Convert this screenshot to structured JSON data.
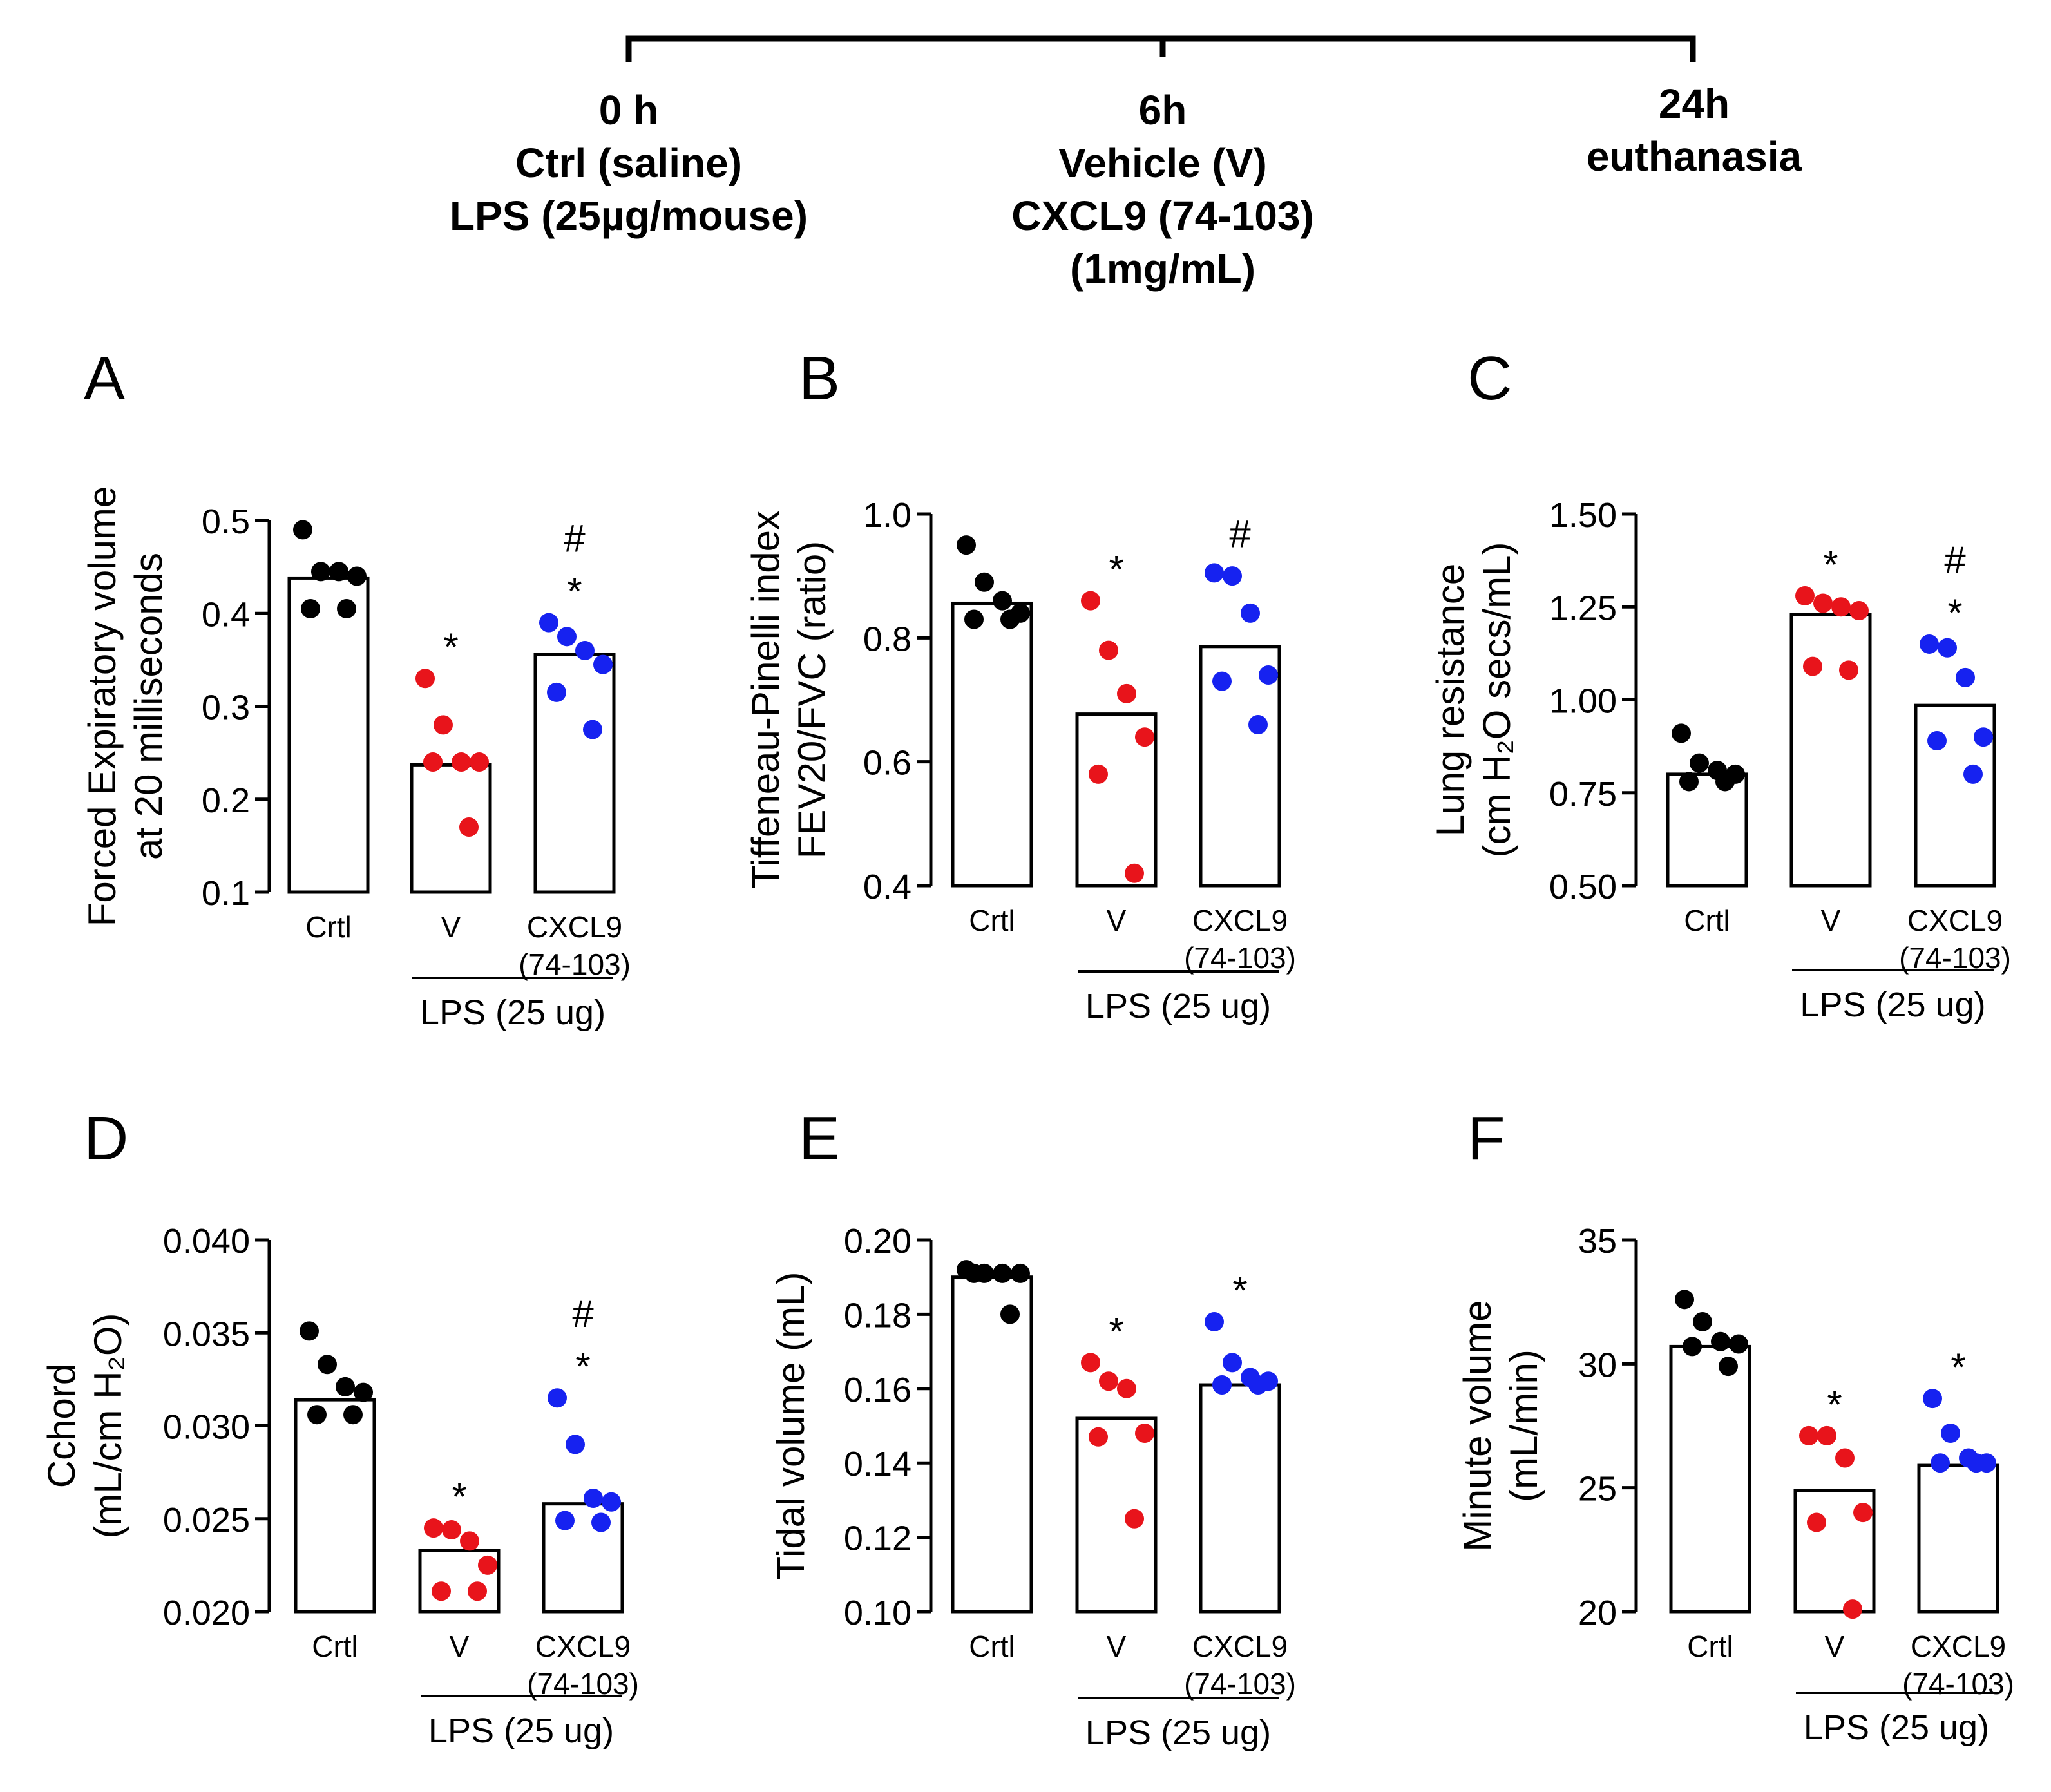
{
  "timeline": {
    "points": [
      {
        "lines": [
          "0 h",
          "Ctrl (saline)",
          "LPS (25µg/mouse)"
        ]
      },
      {
        "lines": [
          "6h",
          "Vehicle (V)",
          "CXCL9 (74-103)",
          "(1mg/mL)"
        ]
      },
      {
        "lines": [
          "24h",
          "euthanasia"
        ]
      }
    ]
  },
  "colors": {
    "ctrl": "#000000",
    "v": "#e8141b",
    "cxcl9": "#1622f0"
  },
  "chart_data": [
    {
      "panel": "A",
      "type": "bar",
      "ylabel": [
        "Forced Expiratory volume",
        "at 20 milliseconds"
      ],
      "ylim": [
        0.1,
        0.5
      ],
      "yticks": [
        "0.1",
        "0.2",
        "0.3",
        "0.4",
        "0.5"
      ],
      "categories": [
        [
          "Crtl"
        ],
        [
          "V"
        ],
        [
          "CXCL9",
          "(74-103)"
        ]
      ],
      "group_label": "LPS (25 ug)",
      "series": [
        {
          "name": "Crtl",
          "color": "ctrl",
          "mean": 0.438,
          "points": [
            0.49,
            0.445,
            0.445,
            0.44,
            0.405,
            0.405
          ],
          "marks": []
        },
        {
          "name": "V",
          "color": "v",
          "mean": 0.237,
          "points": [
            0.33,
            0.28,
            0.24,
            0.24,
            0.24,
            0.17
          ],
          "marks": [
            "*"
          ]
        },
        {
          "name": "CXCL9 (74-103)",
          "color": "cxcl9",
          "mean": 0.356,
          "points": [
            0.39,
            0.375,
            0.36,
            0.345,
            0.315,
            0.275
          ],
          "marks": [
            "#",
            "*"
          ]
        }
      ]
    },
    {
      "panel": "B",
      "type": "bar",
      "ylabel": [
        "Tiffeneau-Pinelli index",
        "FEV20/FVC (ratio)"
      ],
      "ylim": [
        0.4,
        1.0
      ],
      "yticks": [
        "0.4",
        "0.6",
        "0.8",
        "1.0"
      ],
      "categories": [
        [
          "Crtl"
        ],
        [
          "V"
        ],
        [
          "CXCL9",
          "(74-103)"
        ]
      ],
      "group_label": "LPS (25 ug)",
      "series": [
        {
          "name": "Crtl",
          "color": "ctrl",
          "mean": 0.856,
          "points": [
            0.95,
            0.89,
            0.86,
            0.84,
            0.83,
            0.83
          ],
          "marks": []
        },
        {
          "name": "V",
          "color": "v",
          "mean": 0.677,
          "points": [
            0.86,
            0.78,
            0.71,
            0.64,
            0.58,
            0.42
          ],
          "marks": [
            "*"
          ]
        },
        {
          "name": "CXCL9 (74-103)",
          "color": "cxcl9",
          "mean": 0.786,
          "points": [
            0.905,
            0.9,
            0.84,
            0.74,
            0.73,
            0.66
          ],
          "marks": [
            "#"
          ]
        }
      ]
    },
    {
      "panel": "C",
      "type": "bar",
      "ylabel": [
        "Lung resistance",
        "(cm H₂O secs/mL)"
      ],
      "ylim": [
        0.5,
        1.5
      ],
      "yticks": [
        "0.50",
        "0.75",
        "1.00",
        "1.25",
        "1.50"
      ],
      "categories": [
        [
          "Crtl"
        ],
        [
          "V"
        ],
        [
          "CXCL9",
          "(74-103)"
        ]
      ],
      "group_label": "LPS (25 ug)",
      "series": [
        {
          "name": "Crtl",
          "color": "ctrl",
          "mean": 0.8,
          "points": [
            0.91,
            0.83,
            0.81,
            0.8,
            0.78,
            0.78
          ],
          "marks": []
        },
        {
          "name": "V",
          "color": "v",
          "mean": 1.23,
          "points": [
            1.28,
            1.26,
            1.25,
            1.24,
            1.09,
            1.08
          ],
          "marks": [
            "*"
          ]
        },
        {
          "name": "CXCL9 (74-103)",
          "color": "cxcl9",
          "mean": 0.985,
          "points": [
            1.15,
            1.14,
            1.06,
            0.9,
            0.89,
            0.8
          ],
          "marks": [
            "#",
            "*"
          ]
        }
      ]
    },
    {
      "panel": "D",
      "type": "bar",
      "ylabel": [
        "Cchord",
        "(mL/cm H₂O)"
      ],
      "ylim": [
        0.02,
        0.04
      ],
      "yticks": [
        "0.020",
        "0.025",
        "0.030",
        "0.035",
        "0.040"
      ],
      "categories": [
        [
          "Crtl"
        ],
        [
          "V"
        ],
        [
          "CXCL9",
          "(74-103)"
        ]
      ],
      "group_label": "LPS (25 ug)",
      "series": [
        {
          "name": "Crtl",
          "color": "ctrl",
          "mean": 0.0314,
          "points": [
            0.0351,
            0.0333,
            0.0321,
            0.0318,
            0.0306,
            0.0306
          ],
          "marks": []
        },
        {
          "name": "V",
          "color": "v",
          "mean": 0.0233,
          "points": [
            0.0245,
            0.0244,
            0.0238,
            0.0225,
            0.0211,
            0.0211
          ],
          "marks": [
            "*"
          ]
        },
        {
          "name": "CXCL9 (74-103)",
          "color": "cxcl9",
          "mean": 0.0258,
          "points": [
            0.0315,
            0.029,
            0.0261,
            0.0259,
            0.0249,
            0.0248
          ],
          "marks": [
            "#",
            "*"
          ]
        }
      ]
    },
    {
      "panel": "E",
      "type": "bar",
      "ylabel": [
        "Tidal volume (mL)"
      ],
      "ylim": [
        0.1,
        0.2
      ],
      "yticks": [
        "0.10",
        "0.12",
        "0.14",
        "0.16",
        "0.18",
        "0.20"
      ],
      "categories": [
        [
          "Crtl"
        ],
        [
          "V"
        ],
        [
          "CXCL9",
          "(74-103)"
        ]
      ],
      "group_label": "LPS (25 ug)",
      "series": [
        {
          "name": "Crtl",
          "color": "ctrl",
          "mean": 0.19,
          "points": [
            0.192,
            0.191,
            0.191,
            0.191,
            0.191,
            0.18
          ],
          "marks": []
        },
        {
          "name": "V",
          "color": "v",
          "mean": 0.152,
          "points": [
            0.167,
            0.162,
            0.16,
            0.148,
            0.147,
            0.125
          ],
          "marks": [
            "*"
          ]
        },
        {
          "name": "CXCL9 (74-103)",
          "color": "cxcl9",
          "mean": 0.161,
          "points": [
            0.178,
            0.167,
            0.163,
            0.162,
            0.161,
            0.161
          ],
          "marks": [
            "*"
          ]
        }
      ]
    },
    {
      "panel": "F",
      "type": "bar",
      "ylabel": [
        "Minute volume",
        "(mL/min)"
      ],
      "ylim": [
        20,
        35
      ],
      "yticks": [
        "20",
        "25",
        "30",
        "35"
      ],
      "categories": [
        [
          "Crtl"
        ],
        [
          "V"
        ],
        [
          "CXCL9",
          "(74-103)"
        ]
      ],
      "group_label": "LPS (25 ug)",
      "series": [
        {
          "name": "Crtl",
          "color": "ctrl",
          "mean": 30.7,
          "points": [
            32.6,
            31.7,
            30.9,
            30.8,
            30.7,
            29.9
          ],
          "marks": []
        },
        {
          "name": "V",
          "color": "v",
          "mean": 24.9,
          "points": [
            27.1,
            27.1,
            26.2,
            24.0,
            23.6,
            20.1
          ],
          "marks": [
            "*"
          ]
        },
        {
          "name": "CXCL9 (74-103)",
          "color": "cxcl9",
          "mean": 25.9,
          "points": [
            28.6,
            27.2,
            26.2,
            26.0,
            26.0,
            26.0
          ],
          "marks": [
            "*"
          ]
        }
      ]
    }
  ]
}
